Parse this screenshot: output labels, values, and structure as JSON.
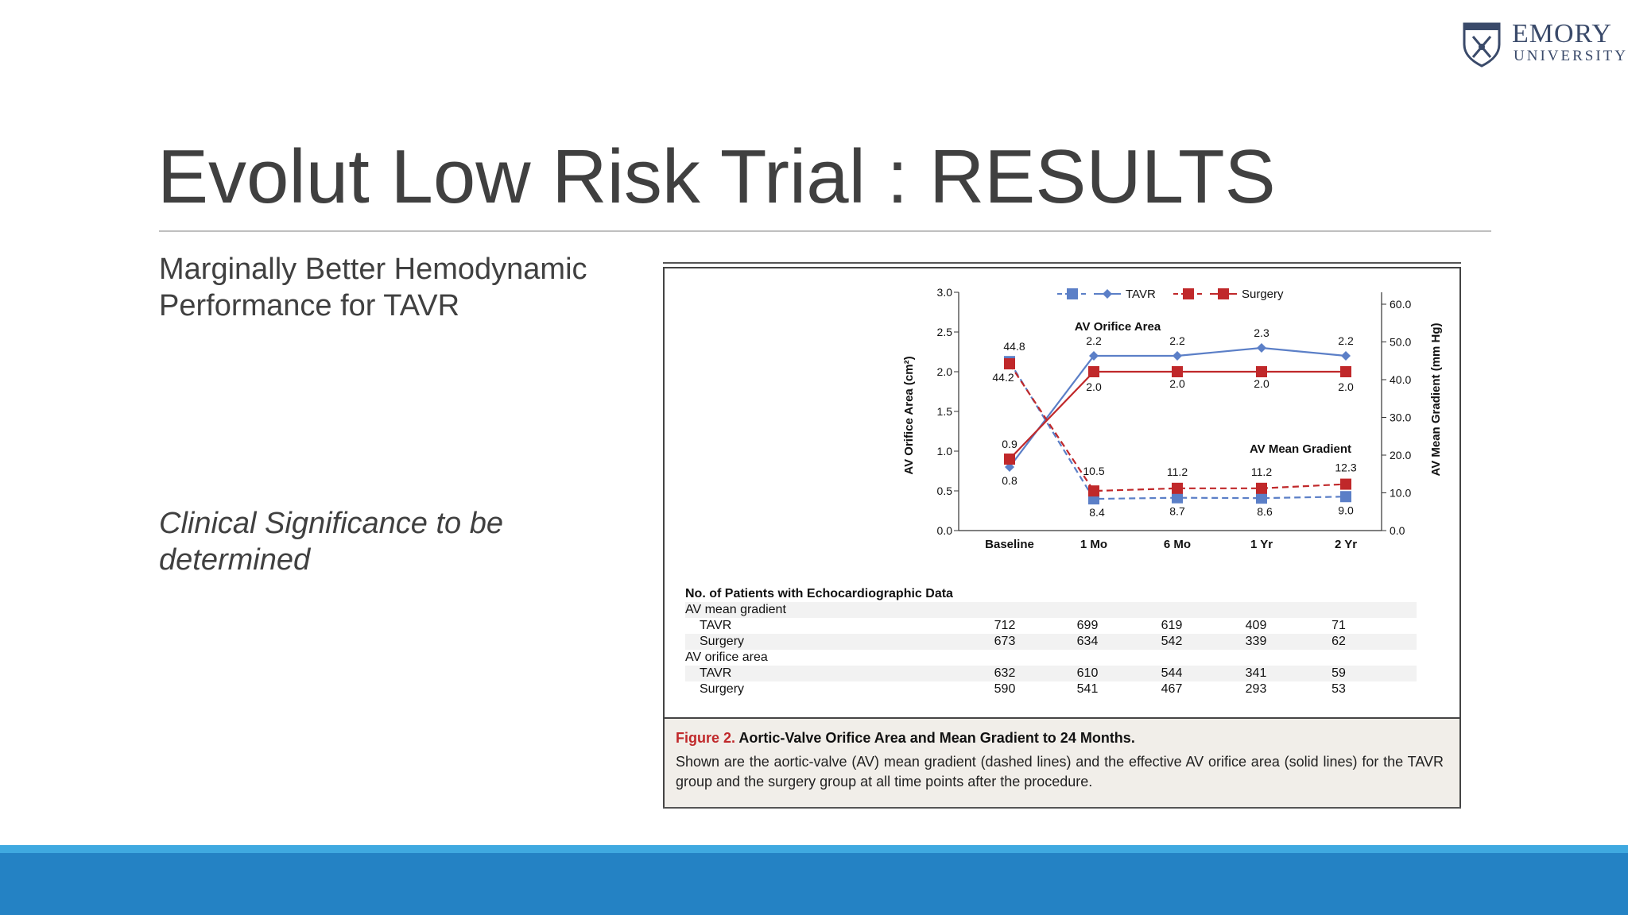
{
  "logo": {
    "line1": "EMORY",
    "line2": "UNIVERSITY"
  },
  "slide": {
    "title": "Evolut Low Risk Trial : RESULTS",
    "bullet1": "Marginally Better Hemodynamic Performance for TAVR",
    "bullet2": "Clinical Significance to be determined"
  },
  "colors": {
    "tavr": "#5b7fc7",
    "surgery": "#c0282a",
    "band_light": "#3fa9e0",
    "band_dark": "#2482c4"
  },
  "chart_data": {
    "type": "line",
    "categories": [
      "Baseline",
      "1 Mo",
      "6 Mo",
      "1 Yr",
      "2 Yr"
    ],
    "ylabel_left": "AV Orifice Area (cm²)",
    "ylabel_right": "AV Mean Gradient (mm Hg)",
    "ylim_left": [
      0,
      3.0
    ],
    "ylim_right": [
      0,
      60
    ],
    "yticks_left": [
      "0.0",
      "0.5",
      "1.0",
      "1.5",
      "2.0",
      "2.5",
      "3.0"
    ],
    "yticks_right": [
      "0.0",
      "10.0",
      "20.0",
      "30.0",
      "40.0",
      "50.0",
      "60.0"
    ],
    "annotations": {
      "area": "AV Orifice Area",
      "gradient": "AV Mean Gradient"
    },
    "legend": {
      "tavr": "TAVR",
      "surgery": "Surgery",
      "position": "top"
    },
    "series": [
      {
        "name": "TAVR",
        "metric": "area",
        "axis": "left",
        "style": "solid",
        "marker": "diamond",
        "values": [
          0.8,
          2.2,
          2.2,
          2.3,
          2.2
        ],
        "labels": [
          "0.8",
          "2.2",
          "2.2",
          "2.3",
          "2.2"
        ]
      },
      {
        "name": "Surgery",
        "metric": "area",
        "axis": "left",
        "style": "solid",
        "marker": "square",
        "values": [
          0.9,
          2.0,
          2.0,
          2.0,
          2.0
        ],
        "labels": [
          "0.9",
          "2.0",
          "2.0",
          "2.0",
          "2.0"
        ]
      },
      {
        "name": "TAVR",
        "metric": "gradient",
        "axis": "right",
        "style": "dashed",
        "marker": "square",
        "values": [
          44.8,
          8.4,
          8.7,
          8.6,
          9.0
        ],
        "labels": [
          "44.8",
          "8.4",
          "8.7",
          "8.6",
          "9.0"
        ]
      },
      {
        "name": "Surgery",
        "metric": "gradient",
        "axis": "right",
        "style": "dashed",
        "marker": "square",
        "values": [
          44.2,
          10.5,
          11.2,
          11.2,
          12.3
        ],
        "labels": [
          "44.2",
          "10.5",
          "11.2",
          "11.2",
          "12.3"
        ]
      }
    ]
  },
  "table": {
    "heading": "No. of Patients with Echocardiographic Data",
    "rows": [
      {
        "label": "AV mean gradient",
        "indent": false,
        "values": []
      },
      {
        "label": "TAVR",
        "indent": true,
        "values": [
          "712",
          "699",
          "619",
          "409",
          "71"
        ]
      },
      {
        "label": "Surgery",
        "indent": true,
        "values": [
          "673",
          "634",
          "542",
          "339",
          "62"
        ]
      },
      {
        "label": "AV orifice area",
        "indent": false,
        "values": []
      },
      {
        "label": "TAVR",
        "indent": true,
        "values": [
          "632",
          "610",
          "544",
          "341",
          "59"
        ]
      },
      {
        "label": "Surgery",
        "indent": true,
        "values": [
          "590",
          "541",
          "467",
          "293",
          "53"
        ]
      }
    ]
  },
  "caption": {
    "fig_label": "Figure 2.",
    "title": "Aortic-Valve Orifice Area and Mean Gradient to 24 Months.",
    "body": "Shown are the aortic-valve (AV) mean gradient (dashed lines) and the effective AV orifice area (solid lines) for the TAVR group and the surgery group at all time points after the procedure."
  }
}
